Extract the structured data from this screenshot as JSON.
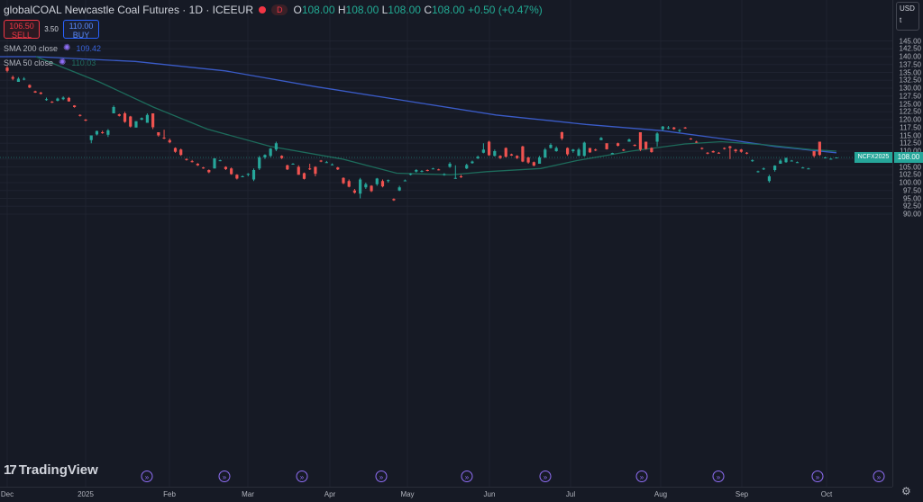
{
  "header": {
    "symbol_title": "globalCOAL Newcastle Coal Futures · 1D · ICEEUR",
    "badge": "D",
    "ohlc": {
      "o_label": "O",
      "o": "108.00",
      "h_label": "H",
      "h": "108.00",
      "l_label": "L",
      "l": "108.00",
      "c_label": "C",
      "c": "108.00",
      "change": "+0.50 (+0.47%)"
    }
  },
  "trade": {
    "sell_price": "106.50",
    "sell_label": "SELL",
    "spread": "3.50",
    "buy_price": "110.00",
    "buy_label": "BUY"
  },
  "indicators": [
    {
      "name": "SMA 200 close",
      "value": "109.42"
    },
    {
      "name": "SMA 50 close",
      "value": "110.03"
    }
  ],
  "price_axis": {
    "currency": "USD",
    "unit_toggle": "t",
    "labels": [
      "145.00",
      "142.50",
      "140.00",
      "137.50",
      "135.00",
      "132.50",
      "130.00",
      "127.50",
      "125.00",
      "122.50",
      "120.00",
      "117.50",
      "115.00",
      "112.50",
      "110.00",
      "107.50",
      "105.00",
      "102.50",
      "100.00",
      "97.50",
      "95.00",
      "92.50",
      "90.00"
    ],
    "last_price": "108.00",
    "symbol_tag": "NCFX2025"
  },
  "time_axis": {
    "labels": [
      "Dec",
      "2025",
      "Feb",
      "Mar",
      "Apr",
      "May",
      "Jun",
      "Jul",
      "Aug",
      "Sep",
      "Oct"
    ]
  },
  "branding": {
    "logo_text": "TradingView"
  },
  "colors": {
    "background": "#161a25",
    "up": "#26a69a",
    "down": "#ef5350",
    "sma200": "#3a5bc7",
    "sma50": "#1d6b5b"
  },
  "chart_data": {
    "type": "candlestick",
    "ylim": [
      90,
      145
    ],
    "overlays": [
      "SMA 200 close",
      "SMA 50 close"
    ],
    "candles_ohlc": [
      [
        136.5,
        137.0,
        135.0,
        135.5
      ],
      [
        133.5,
        134.0,
        132.5,
        133.0
      ],
      [
        132.0,
        133.5,
        132.0,
        133.0
      ],
      [
        133.0,
        133.5,
        132.5,
        133.0
      ],
      [
        131.0,
        131.2,
        130.0,
        130.2
      ],
      [
        129.0,
        129.2,
        128.5,
        128.6
      ],
      [
        128.6,
        128.8,
        128.0,
        128.2
      ],
      [
        126.5,
        127.0,
        126.0,
        126.5
      ],
      [
        125.7,
        125.9,
        125.3,
        125.5
      ],
      [
        126.0,
        127.0,
        125.8,
        126.7
      ],
      [
        126.5,
        127.4,
        126.2,
        127.0
      ],
      [
        126.9,
        127.2,
        125.7,
        125.8
      ],
      [
        124.5,
        124.6,
        123.8,
        124.0
      ],
      [
        121.5,
        121.7,
        121.0,
        121.2
      ],
      [
        120.0,
        120.2,
        119.5,
        119.7
      ],
      [
        113.5,
        115.0,
        112.5,
        115.0
      ],
      [
        115.3,
        116.5,
        115.0,
        116.4
      ],
      [
        116.0,
        116.5,
        115.5,
        115.8
      ],
      [
        115.2,
        117.0,
        114.5,
        116.6
      ],
      [
        122.0,
        124.5,
        122.0,
        124.0
      ],
      [
        121.7,
        121.9,
        121.0,
        121.2
      ],
      [
        122.0,
        122.5,
        119.0,
        119.3
      ],
      [
        121.0,
        121.2,
        117.5,
        117.8
      ],
      [
        117.5,
        119.5,
        117.5,
        119.5
      ],
      [
        120.0,
        120.7,
        119.8,
        120.5
      ],
      [
        119.0,
        122.0,
        119.0,
        121.5
      ],
      [
        122.0,
        122.0,
        117.0,
        117.6
      ],
      [
        116.0,
        116.0,
        114.6,
        115.0
      ],
      [
        114.3,
        116.8,
        113.8,
        114.0
      ],
      [
        113.5,
        114.0,
        112.5,
        112.8
      ],
      [
        111.0,
        111.2,
        109.5,
        109.8
      ],
      [
        110.5,
        110.8,
        108.5,
        108.8
      ],
      [
        107.5,
        107.7,
        107.0,
        107.2
      ],
      [
        106.8,
        107.2,
        106.4,
        106.7
      ],
      [
        106.0,
        106.2,
        105.3,
        105.5
      ],
      [
        104.8,
        105.0,
        104.4,
        104.5
      ],
      [
        104.0,
        104.2,
        103.0,
        103.3
      ],
      [
        104.5,
        107.8,
        104.5,
        107.7
      ],
      [
        107.0,
        107.3,
        106.8,
        107.1
      ],
      [
        105.0,
        105.2,
        104.0,
        104.3
      ],
      [
        104.5,
        104.8,
        102.5,
        102.7
      ],
      [
        102.5,
        102.7,
        101.0,
        101.3
      ],
      [
        102.0,
        102.3,
        101.7,
        102.0
      ],
      [
        102.5,
        103.0,
        102.0,
        102.8
      ],
      [
        101.0,
        104.5,
        100.5,
        104.0
      ],
      [
        104.5,
        108.5,
        104.0,
        108.0
      ],
      [
        108.0,
        109.0,
        107.5,
        108.8
      ],
      [
        108.5,
        111.0,
        108.0,
        110.8
      ],
      [
        110.5,
        113.0,
        110.0,
        112.5
      ],
      [
        108.5,
        108.7,
        107.5,
        107.8
      ],
      [
        105.5,
        105.7,
        104.0,
        104.2
      ],
      [
        106.0,
        106.2,
        105.8,
        106.0
      ],
      [
        105.0,
        105.5,
        102.5,
        102.5
      ],
      [
        103.0,
        103.2,
        101.0,
        101.2
      ],
      [
        104.5,
        106.0,
        104.0,
        104.3
      ],
      [
        105.0,
        105.2,
        102.0,
        102.8
      ],
      [
        107.0,
        107.2,
        106.5,
        106.7
      ],
      [
        106.5,
        106.9,
        106.3,
        106.5
      ],
      [
        105.8,
        106.1,
        105.5,
        105.8
      ],
      [
        104.8,
        105.0,
        104.0,
        104.2
      ],
      [
        101.5,
        101.7,
        99.5,
        99.8
      ],
      [
        100.5,
        101.0,
        98.5,
        98.7
      ],
      [
        97.5,
        98.0,
        96.5,
        96.8
      ],
      [
        96.5,
        101.5,
        95.0,
        101.0
      ],
      [
        98.5,
        100.0,
        98.0,
        99.5
      ],
      [
        99.0,
        99.2,
        97.0,
        97.3
      ],
      [
        99.5,
        101.5,
        99.0,
        101.3
      ],
      [
        100.5,
        101.0,
        98.5,
        98.8
      ],
      [
        100.5,
        101.0,
        100.0,
        100.8
      ],
      [
        94.8,
        95.0,
        94.2,
        94.4
      ],
      [
        97.5,
        99.0,
        97.3,
        98.5
      ],
      [
        100.5,
        101.0,
        100.5,
        100.7
      ],
      [
        102.5,
        103.0,
        102.3,
        102.8
      ],
      [
        103.5,
        104.3,
        103.2,
        104.0
      ],
      [
        103.5,
        104.0,
        103.3,
        103.7
      ],
      [
        104.0,
        104.2,
        103.6,
        103.8
      ],
      [
        104.5,
        104.7,
        104.3,
        104.5
      ],
      [
        104.2,
        104.4,
        103.9,
        104.0
      ],
      [
        102.5,
        103.0,
        102.2,
        102.7
      ],
      [
        105.0,
        106.5,
        104.7,
        106.0
      ],
      [
        101.5,
        105.5,
        101.2,
        101.5
      ],
      [
        102.0,
        102.5,
        101.5,
        101.7
      ],
      [
        104.5,
        106.0,
        104.3,
        105.6
      ],
      [
        106.2,
        107.0,
        106.0,
        106.7
      ],
      [
        107.7,
        108.6,
        107.5,
        108.2
      ],
      [
        109.5,
        112.5,
        109.3,
        110.5
      ],
      [
        113.0,
        113.3,
        108.5,
        108.7
      ],
      [
        108.5,
        110.5,
        108.3,
        110.0
      ],
      [
        108.5,
        108.7,
        107.5,
        107.8
      ],
      [
        111.0,
        111.2,
        108.0,
        108.2
      ],
      [
        109.0,
        109.2,
        108.5,
        108.6
      ],
      [
        108.5,
        108.7,
        107.5,
        107.8
      ],
      [
        111.5,
        111.7,
        106.5,
        106.7
      ],
      [
        108.0,
        108.2,
        106.0,
        106.4
      ],
      [
        106.5,
        106.7,
        105.2,
        105.4
      ],
      [
        106.0,
        108.5,
        106.0,
        108.0
      ],
      [
        108.0,
        111.0,
        107.8,
        110.5
      ],
      [
        111.0,
        112.5,
        110.8,
        112.0
      ],
      [
        110.0,
        111.5,
        109.8,
        111.0
      ],
      [
        116.0,
        116.2,
        113.5,
        114.0
      ],
      [
        111.0,
        111.2,
        108.5,
        109.0
      ],
      [
        110.0,
        110.7,
        109.5,
        110.5
      ],
      [
        108.5,
        111.0,
        108.5,
        110.5
      ],
      [
        108.5,
        113.0,
        108.3,
        112.7
      ],
      [
        111.0,
        111.0,
        109.5,
        109.6
      ],
      [
        110.5,
        110.8,
        110.0,
        110.3
      ],
      [
        113.5,
        114.5,
        113.5,
        114.2
      ],
      [
        112.5,
        112.5,
        110.5,
        110.6
      ],
      [
        109.0,
        109.5,
        109.0,
        109.4
      ],
      [
        112.5,
        112.7,
        111.5,
        111.7
      ],
      [
        110.5,
        110.7,
        110.0,
        110.2
      ],
      [
        113.0,
        114.0,
        113.0,
        113.7
      ],
      [
        112.0,
        112.2,
        111.5,
        111.7
      ],
      [
        116.0,
        116.0,
        110.0,
        110.5
      ],
      [
        113.0,
        113.0,
        110.5,
        110.7
      ],
      [
        111.0,
        111.2,
        109.5,
        109.7
      ],
      [
        113.0,
        116.0,
        111.5,
        115.6
      ],
      [
        117.0,
        118.0,
        116.5,
        117.8
      ],
      [
        117.5,
        118.0,
        117.0,
        117.5
      ],
      [
        117.5,
        117.7,
        116.8,
        117.0
      ],
      [
        116.5,
        117.0,
        116.0,
        116.7
      ],
      [
        117.5,
        117.7,
        117.1,
        117.2
      ],
      [
        114.0,
        114.2,
        113.6,
        113.8
      ],
      [
        113.0,
        113.3,
        112.6,
        112.9
      ],
      [
        111.0,
        111.2,
        110.5,
        110.8
      ],
      [
        109.5,
        109.7,
        109.0,
        109.2
      ],
      [
        110.0,
        110.2,
        109.5,
        109.6
      ],
      [
        109.5,
        109.7,
        109.2,
        109.4
      ],
      [
        111.0,
        111.2,
        110.5,
        110.7
      ],
      [
        111.5,
        111.7,
        107.5,
        111.0
      ],
      [
        110.5,
        110.7,
        109.5,
        110.0
      ],
      [
        110.5,
        110.7,
        109.5,
        109.8
      ],
      [
        109.5,
        109.7,
        109.0,
        109.2
      ],
      [
        107.0,
        107.4,
        106.6,
        107.1
      ],
      [
        103.5,
        103.8,
        103.2,
        103.6
      ],
      [
        104.5,
        104.8,
        104.0,
        104.5
      ],
      [
        100.5,
        102.5,
        100.0,
        102.0
      ],
      [
        104.0,
        105.5,
        103.5,
        105.4
      ],
      [
        106.0,
        107.5,
        106.0,
        107.0
      ],
      [
        106.5,
        108.0,
        106.3,
        107.8
      ],
      [
        107.0,
        107.2,
        106.8,
        107.0
      ],
      [
        106.5,
        106.7,
        106.3,
        106.5
      ],
      [
        104.8,
        105.0,
        104.6,
        104.8
      ],
      [
        104.5,
        104.7,
        104.3,
        104.5
      ],
      [
        110.0,
        110.0,
        108.0,
        108.5
      ],
      [
        113.0,
        113.0,
        108.5,
        108.8
      ],
      [
        108.0,
        108.2,
        107.7,
        108.0
      ],
      [
        107.6,
        107.8,
        107.3,
        107.6
      ],
      [
        108.0,
        108.0,
        108.0,
        108.0
      ]
    ]
  }
}
